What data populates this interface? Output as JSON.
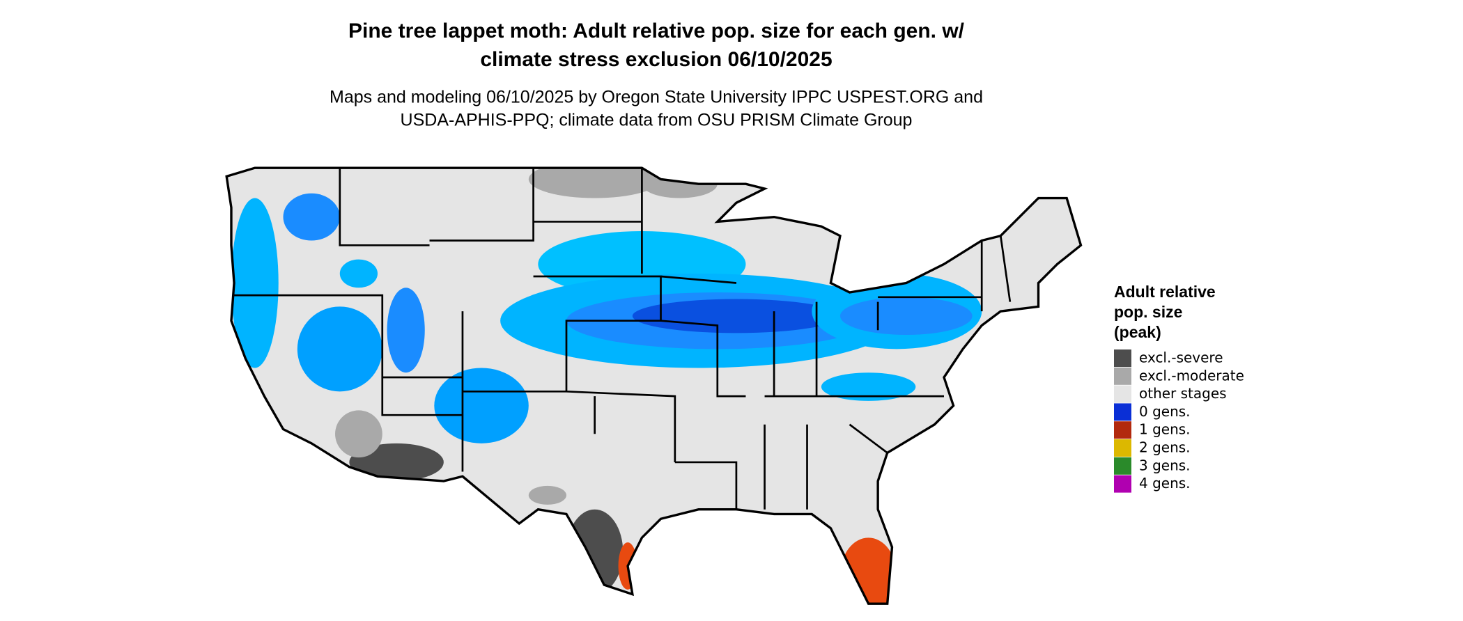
{
  "title": [
    "Pine tree lappet moth: Adult relative pop. size for each gen. w/",
    "climate stress exclusion 06/10/2025"
  ],
  "subtitle": [
    "Maps and modeling 06/10/2025 by Oregon State University IPPC USPEST.ORG and",
    "USDA-APHIS-PPQ; climate data from OSU PRISM Climate Group"
  ],
  "legend": {
    "title": [
      "Adult relative",
      "pop. size",
      "(peak)"
    ],
    "items": [
      {
        "label": "excl.-severe",
        "color": "#4d4d4d"
      },
      {
        "label": "excl.-moderate",
        "color": "#a9a9a9"
      },
      {
        "label": "other stages",
        "color": "#e5e5e5"
      },
      {
        "label": "0 gens.",
        "color": "#0a2fd6"
      },
      {
        "label": "1 gens.",
        "color": "#b2290e"
      },
      {
        "label": "2 gens.",
        "color": "#dcb800"
      },
      {
        "label": "3 gens.",
        "color": "#2a8a2a"
      },
      {
        "label": "4 gens.",
        "color": "#b000b0"
      }
    ]
  }
}
